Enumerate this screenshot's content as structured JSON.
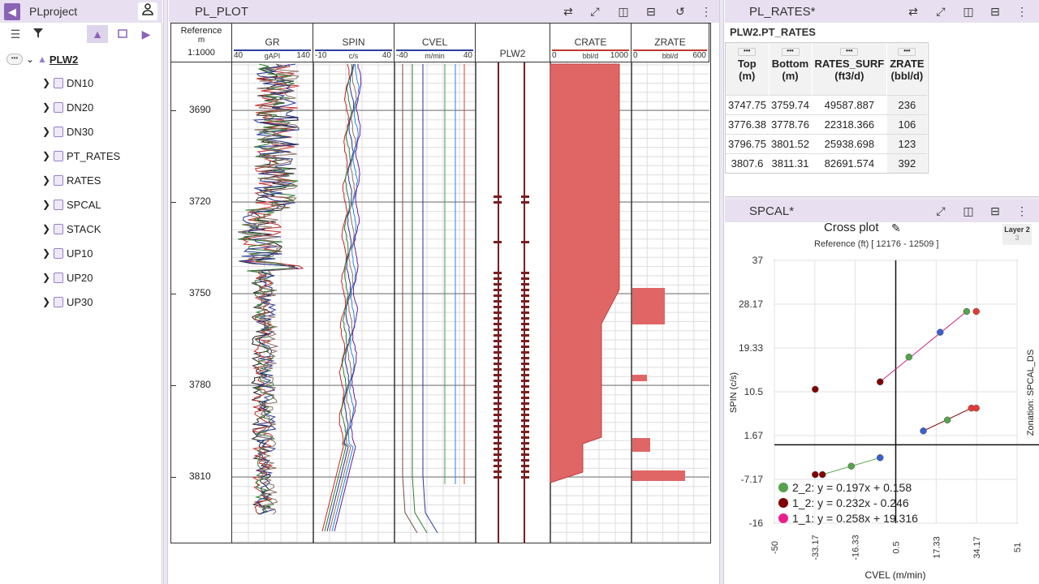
{
  "project": {
    "title": "PLproject"
  },
  "tree": {
    "root": "PLW2",
    "items": [
      "DN10",
      "DN20",
      "DN30",
      "PT_RATES",
      "RATES",
      "SPCAL",
      "STACK",
      "UP10",
      "UP20",
      "UP30"
    ]
  },
  "plot_panel": {
    "title": "PL_PLOT",
    "reference": {
      "label": "Reference",
      "unit": "m",
      "scale": "1:1000"
    },
    "depth_labels": [
      "3690",
      "3720",
      "3750",
      "3780",
      "3810"
    ],
    "tracks": [
      {
        "name": "GR",
        "unit": "gAPI",
        "min": "40",
        "max": "140",
        "color": "#2c3fa0"
      },
      {
        "name": "SPIN",
        "unit": "c/s",
        "min": "-10",
        "max": "40",
        "color": "#2c3fa0"
      },
      {
        "name": "CVEL",
        "unit": "m/min",
        "min": "-40",
        "max": "40",
        "color": "#2c3fa0"
      },
      {
        "name": "PLW2",
        "unit": "",
        "min": "",
        "max": "",
        "color": "#000"
      },
      {
        "name": "CRATE",
        "unit": "bbl/d",
        "min": "0",
        "max": "1000",
        "color": "#c0392b"
      },
      {
        "name": "ZRATE",
        "unit": "bbl/d",
        "min": "0",
        "max": "600",
        "color": "#c0392b"
      }
    ]
  },
  "rates_panel": {
    "title": "PL_RATES*",
    "subtitle": "PLW2.PT_RATES",
    "columns": [
      {
        "name": "Top",
        "unit": "(m)"
      },
      {
        "name": "Bottom",
        "unit": "(m)"
      },
      {
        "name": "RATES_SURF",
        "unit": "(ft3/d)"
      },
      {
        "name": "ZRATE",
        "unit": "(bbl/d)"
      }
    ],
    "rows": [
      [
        "3747.75",
        "3759.74",
        "49587.887",
        "236"
      ],
      [
        "3776.38",
        "3778.76",
        "22318.366",
        "106"
      ],
      [
        "3796.75",
        "3801.52",
        "25938.698",
        "123"
      ],
      [
        "3807.6",
        "3811.31",
        "82691.574",
        "392"
      ]
    ],
    "col_menu": "..."
  },
  "spcal_panel": {
    "title": "SPCAL*",
    "layer_badge": "Layer 2",
    "layer_badge_sub": "3",
    "cross_title": "Cross plot",
    "cross_subtitle": "Reference (ft) [ 12176 - 12509 ]",
    "right_label": "Zonation: SPCAL_DS"
  },
  "chart_data": {
    "type": "scatter",
    "xlabel": "CVEL (m/min)",
    "ylabel": "SPIN (c/s)",
    "xlim": [
      -50,
      51
    ],
    "ylim": [
      -16,
      37
    ],
    "xticks": [
      "-50",
      "-33.17",
      "-16.33",
      "0.5",
      "17.33",
      "34.17",
      "51"
    ],
    "yticks": [
      "37",
      "28.17",
      "19.33",
      "10.5",
      "1.67",
      "-7.17",
      "-16"
    ],
    "series": [
      {
        "name": "2_2: y = 0.197x + 0.158",
        "color": "#55a24a",
        "points": [
          [
            -30,
            -6.2
          ],
          [
            -18,
            -4.5
          ],
          [
            -6,
            -2.8
          ]
        ],
        "line_color": "#55a24a"
      },
      {
        "name": "1_2: y = 0.232x - 0.246",
        "color": "#800000",
        "points": [
          [
            -6,
            12.5
          ],
          [
            6,
            17.5
          ],
          [
            19,
            22.5
          ],
          [
            30,
            26.7
          ]
        ],
        "line_color": "#cc2288"
      },
      {
        "name": "1_1: y = 0.258x + 19.316",
        "color": "#e91e8c",
        "points": [
          [
            12,
            2.6
          ],
          [
            22,
            4.8
          ],
          [
            32,
            7.2
          ]
        ],
        "line_color": "#800000"
      }
    ],
    "legend": [
      {
        "label": "2_2: y = 0.197x + 0.158",
        "color": "#55a24a"
      },
      {
        "label": "1_2: y = 0.232x - 0.246",
        "color": "#800000"
      },
      {
        "label": "1_1: y = 0.258x + 19.316",
        "color": "#e91e8c"
      }
    ]
  }
}
